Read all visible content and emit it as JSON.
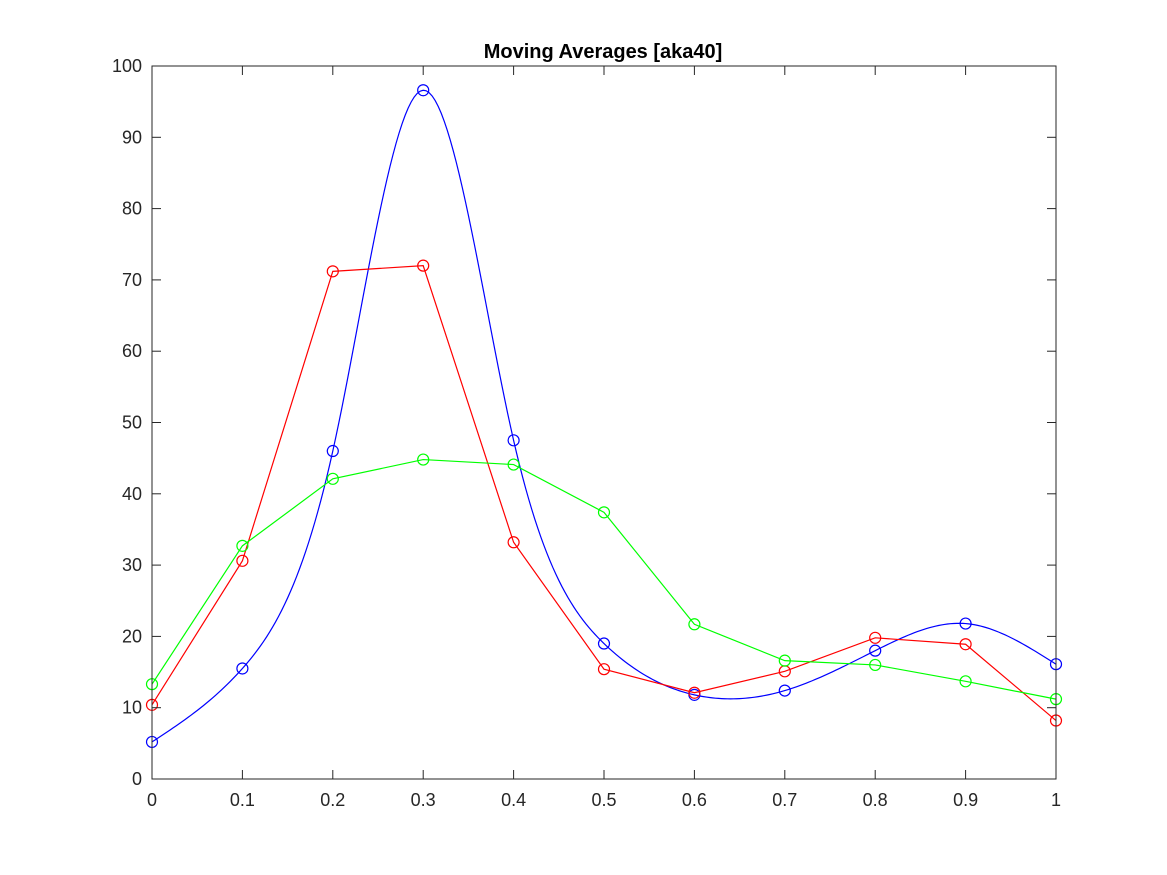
{
  "chart_data": {
    "type": "line",
    "title": "Moving Averages [aka40]",
    "xlabel": "",
    "ylabel": "",
    "xlim": [
      0,
      1
    ],
    "ylim": [
      0,
      100
    ],
    "xticks": [
      0,
      0.1,
      0.2,
      0.3,
      0.4,
      0.5,
      0.6,
      0.7,
      0.8,
      0.9,
      1
    ],
    "xtick_labels": [
      "0",
      "0.1",
      "0.2",
      "0.3",
      "0.4",
      "0.5",
      "0.6",
      "0.7",
      "0.8",
      "0.9",
      "1"
    ],
    "yticks": [
      0,
      10,
      20,
      30,
      40,
      50,
      60,
      70,
      80,
      90,
      100
    ],
    "ytick_labels": [
      "0",
      "10",
      "20",
      "30",
      "40",
      "50",
      "60",
      "70",
      "80",
      "90",
      "100"
    ],
    "grid": false,
    "box": true,
    "x": [
      0,
      0.1,
      0.2,
      0.3,
      0.4,
      0.5,
      0.6,
      0.7,
      0.8,
      0.9,
      1
    ],
    "series": [
      {
        "color": "#0000ff",
        "marker": "circle",
        "line": "smooth-spline",
        "values": [
          5.2,
          15.5,
          46.0,
          96.6,
          47.5,
          19.0,
          11.8,
          12.4,
          18.0,
          21.8,
          16.1
        ]
      },
      {
        "color": "#ff0000",
        "marker": "circle",
        "line": "straight",
        "values": [
          10.4,
          30.6,
          71.2,
          72.0,
          33.2,
          15.4,
          12.1,
          15.1,
          19.8,
          18.9,
          8.2
        ]
      },
      {
        "color": "#00ff00",
        "marker": "circle",
        "line": "straight",
        "values": [
          13.3,
          32.7,
          42.1,
          44.8,
          44.1,
          37.4,
          21.7,
          16.6,
          16.0,
          13.7,
          11.2
        ]
      }
    ]
  }
}
